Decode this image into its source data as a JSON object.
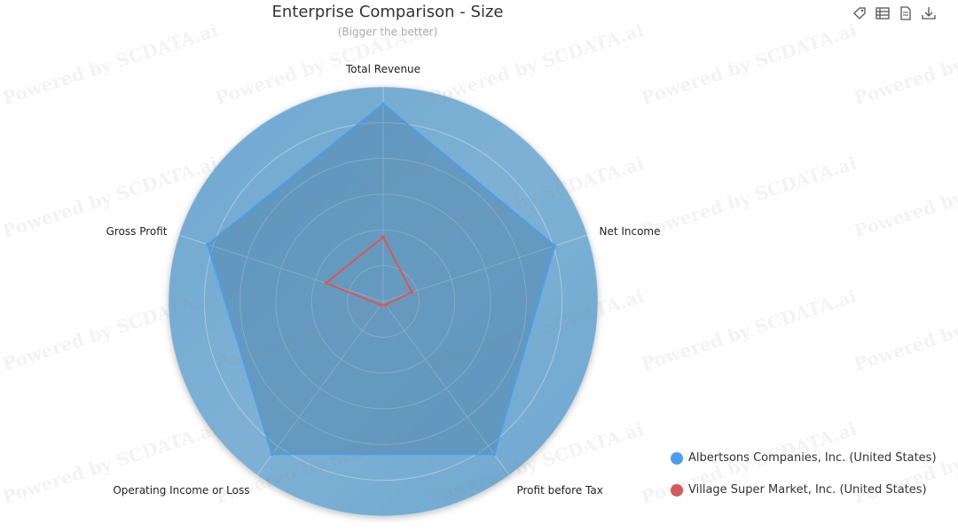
{
  "title": "Enterprise Comparison - Size",
  "subtitle": "(Bigger the better)",
  "watermark_text": "Powered by SCDATA.ai",
  "toolbox": {
    "icons": [
      "tag-icon",
      "data-view-icon",
      "document-icon",
      "download-icon"
    ]
  },
  "colors": {
    "background_disc": "#6fa8d0",
    "series1": "#4a9fe8",
    "series2": "#d45a5a",
    "grid": "#c9dcea"
  },
  "chart_data": {
    "type": "radar",
    "indicators": [
      "Total Revenue",
      "Net Income",
      "Profit before Tax",
      "Operating Income or Loss",
      "Gross Profit"
    ],
    "max": 100,
    "rings": 6,
    "series": [
      {
        "name": "Albertsons Companies, Inc. (United States)",
        "values": [
          92,
          84,
          88,
          88,
          86
        ]
      },
      {
        "name": "Village Super Market, Inc. (United States)",
        "values": [
          30,
          14,
          2,
          2,
          28
        ]
      }
    ],
    "legend_position": "bottom-right"
  }
}
